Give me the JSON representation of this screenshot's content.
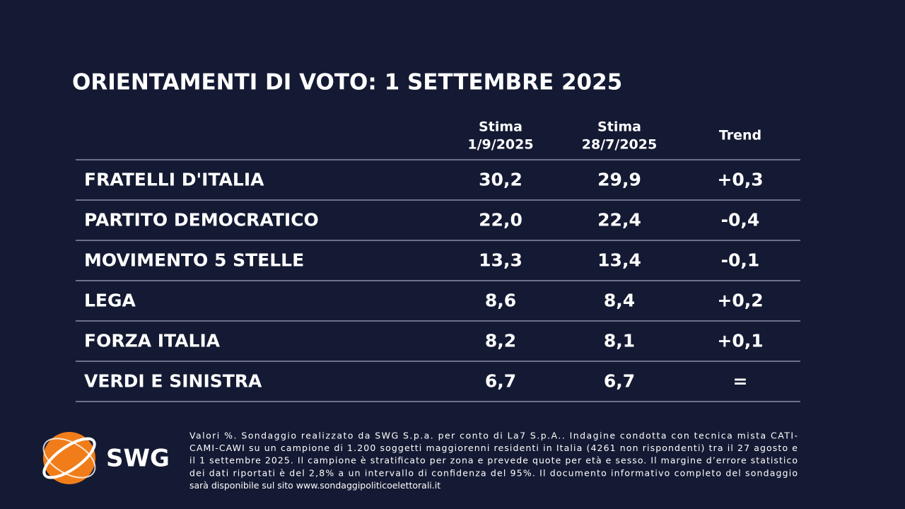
{
  "title": "ORIENTAMENTI DI VOTO: 1 SETTEMBRE 2025",
  "table": {
    "headers": [
      [
        "Stima",
        "1/9/2025"
      ],
      [
        "Stima",
        "28/7/2025"
      ],
      [
        "Trend"
      ]
    ],
    "rows": [
      [
        "FRATELLI D'ITALIA",
        "30,2",
        "29,9",
        "+0,3"
      ],
      [
        "PARTITO DEMOCRATICO",
        "22,0",
        "22,4",
        "-0,4"
      ],
      [
        "MOVIMENTO 5 STELLE",
        "13,3",
        "13,4",
        "-0,1"
      ],
      [
        "LEGA",
        "8,6",
        "8,4",
        "+0,2"
      ],
      [
        "FORZA ITALIA",
        "8,2",
        "8,1",
        "+0,1"
      ],
      [
        "VERDI E SINISTRA",
        "6,7",
        "6,7",
        "="
      ]
    ]
  },
  "logo": "SWG",
  "footnote": [
    "Valori %. Sondaggio realizzato da SWG S.p.a. per conto di La7 S.p.A.. Indagine condotta con tecnica mista CATI-",
    "CAMI-CAWI su un campione di 1.200 soggetti maggiorenni residenti in Italia (4261 non rispondenti) tra il 27 agosto e",
    "il 1 settembre 2025. Il campione è stratificato per zona e prevede quote per età e sesso. Il margine d’errore statistico",
    "dei dati riportati è del 2,8% a un intervallo di confidenza del 95%. Il documento informativo completo del sondaggio",
    "sarà disponibile sul sito www.sondaggipoliticoelettorali.it"
  ]
}
